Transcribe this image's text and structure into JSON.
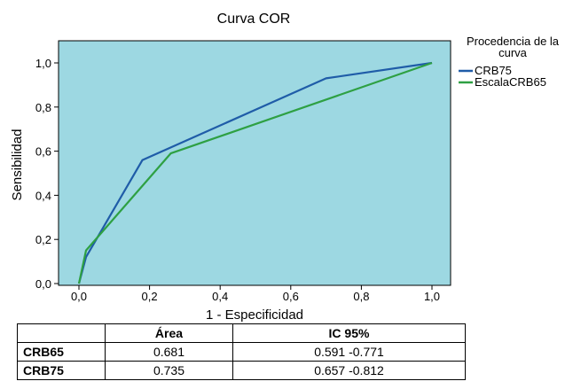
{
  "chart_data": {
    "type": "line",
    "title": "Curva COR",
    "xlabel": "1 - Especificidad",
    "ylabel": "Sensibilidad",
    "xlim": [
      0,
      1
    ],
    "ylim": [
      0,
      1
    ],
    "xticks": [
      {
        "v": 0.0,
        "label": "0,0"
      },
      {
        "v": 0.2,
        "label": "0,2"
      },
      {
        "v": 0.4,
        "label": "0,4"
      },
      {
        "v": 0.6,
        "label": "0,6"
      },
      {
        "v": 0.8,
        "label": "0,8"
      },
      {
        "v": 1.0,
        "label": "1,0"
      }
    ],
    "yticks": [
      {
        "v": 0.0,
        "label": "0,0"
      },
      {
        "v": 0.2,
        "label": "0,2"
      },
      {
        "v": 0.4,
        "label": "0,4"
      },
      {
        "v": 0.6,
        "label": "0,6"
      },
      {
        "v": 0.8,
        "label": "0,8"
      },
      {
        "v": 1.0,
        "label": "1,0"
      }
    ],
    "background_color": "#9dd8e2",
    "legend": {
      "title": "Procedencia de la curva",
      "title_lines": [
        "Procedencia de la",
        "curva"
      ],
      "position": "right"
    },
    "series": [
      {
        "name": "CRB75",
        "color": "#1f5ca8",
        "points": [
          [
            0.0,
            0.0
          ],
          [
            0.02,
            0.12
          ],
          [
            0.18,
            0.56
          ],
          [
            0.7,
            0.93
          ],
          [
            1.0,
            1.0
          ]
        ]
      },
      {
        "name": "EscalaCRB65",
        "color": "#2ea043",
        "points": [
          [
            0.0,
            0.0
          ],
          [
            0.02,
            0.15
          ],
          [
            0.26,
            0.59
          ],
          [
            1.0,
            1.0
          ]
        ]
      }
    ]
  },
  "table": {
    "headers": [
      "",
      "Área",
      "IC 95%"
    ],
    "rows": [
      {
        "label": "CRB65",
        "area": "0.681",
        "ci": "0.591 -0.771"
      },
      {
        "label": "CRB75",
        "area": "0.735",
        "ci": "0.657 -0.812"
      }
    ]
  }
}
